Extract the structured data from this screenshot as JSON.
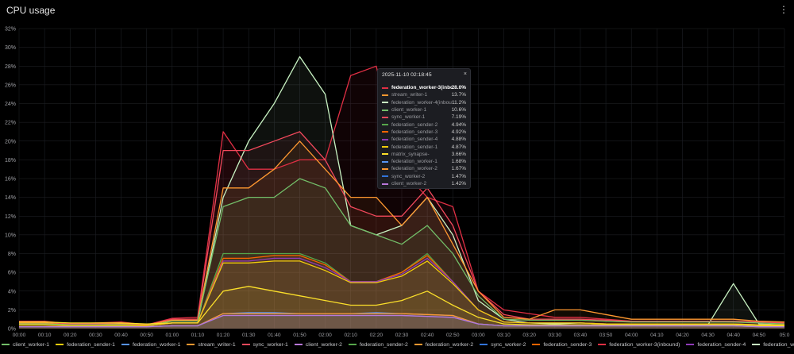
{
  "panel": {
    "title": "CPU usage",
    "menu_icon": "kebab-menu-icon"
  },
  "tooltip": {
    "time": "2025-11-10 02:18:45",
    "close_icon": "close-icon",
    "rows": [
      {
        "name": "federation_worker-3(inbound)",
        "value": "28.0%",
        "color": "#e02f44"
      },
      {
        "name": "stream_writer-1",
        "value": "13.7%",
        "color": "#ff9830"
      },
      {
        "name": "federation_worker-4(inbound)",
        "value": "11.2%",
        "color": "#c8f2c2"
      },
      {
        "name": "client_worker-1",
        "value": "10.6%",
        "color": "#73bf69"
      },
      {
        "name": "sync_worker-1",
        "value": "7.19%",
        "color": "#f2495c"
      },
      {
        "name": "federation_sender-2",
        "value": "4.94%",
        "color": "#56a64b"
      },
      {
        "name": "federation_sender-3",
        "value": "4.92%",
        "color": "#fa6400"
      },
      {
        "name": "federation_sender-4",
        "value": "4.88%",
        "color": "#8f3bb8"
      },
      {
        "name": "federation_sender-1",
        "value": "4.87%",
        "color": "#f2cc0c"
      },
      {
        "name": "matrix_synapse-",
        "value": "3.66%",
        "color": "#fade2a"
      },
      {
        "name": "federation_worker-1",
        "value": "1.68%",
        "color": "#5794f2"
      },
      {
        "name": "federation_worker-2",
        "value": "1.67%",
        "color": "#ff9830"
      },
      {
        "name": "sync_worker-2",
        "value": "1.47%",
        "color": "#3274d9"
      },
      {
        "name": "client_worker-2",
        "value": "1.42%",
        "color": "#b877d9"
      }
    ]
  },
  "legend": [
    {
      "name": "client_worker-1",
      "color": "#73bf69"
    },
    {
      "name": "federation_sender-1",
      "color": "#f2cc0c"
    },
    {
      "name": "federation_worker-1",
      "color": "#5794f2"
    },
    {
      "name": "stream_writer-1",
      "color": "#ff9830"
    },
    {
      "name": "sync_worker-1",
      "color": "#f2495c"
    },
    {
      "name": "client_worker-2",
      "color": "#b877d9"
    },
    {
      "name": "federation_sender-2",
      "color": "#56a64b"
    },
    {
      "name": "federation_worker-2",
      "color": "#ff9830"
    },
    {
      "name": "sync_worker-2",
      "color": "#3274d9"
    },
    {
      "name": "federation_sender-3",
      "color": "#fa6400"
    },
    {
      "name": "federation_worker-3(inbound)",
      "color": "#e02f44"
    },
    {
      "name": "federation_sender-4",
      "color": "#8f3bb8"
    },
    {
      "name": "federation_worker-4(inbound)",
      "color": "#c8f2c2"
    },
    {
      "name": "matrix_synapse-",
      "color": "#fade2a"
    }
  ],
  "chart_data": {
    "type": "area",
    "title": "CPU usage",
    "y_ticks": [
      "0%",
      "2%",
      "4%",
      "6%",
      "8%",
      "10%",
      "12%",
      "14%",
      "16%",
      "18%",
      "20%",
      "22%",
      "24%",
      "26%",
      "28%",
      "30%",
      "32%"
    ],
    "x_ticks": [
      "00:00",
      "00:10",
      "00:20",
      "00:30",
      "00:40",
      "00:50",
      "01:00",
      "01:10",
      "01:20",
      "01:30",
      "01:40",
      "01:50",
      "02:00",
      "02:10",
      "02:20",
      "02:30",
      "02:40",
      "02:50",
      "03:00",
      "03:10",
      "03:20",
      "03:30",
      "03:40",
      "03:50",
      "04:00",
      "04:10",
      "04:20",
      "04:30",
      "04:40",
      "04:50",
      "05:0"
    ],
    "ylim": [
      0,
      32
    ],
    "grid": true,
    "legend_position": "bottom",
    "series": [
      {
        "name": "federation_worker-3(inbound)",
        "color": "#e02f44",
        "values": [
          0.8,
          0.8,
          0.5,
          0.6,
          0.7,
          0.4,
          1.1,
          1.2,
          21,
          17,
          17,
          18,
          18,
          27,
          28,
          17,
          14,
          13,
          4,
          2,
          1.6,
          1.2,
          1.2,
          1,
          0.8,
          0.8,
          0.8,
          0.8,
          0.7,
          0.7,
          0.6
        ]
      },
      {
        "name": "federation_worker-4(inbound)",
        "color": "#c8f2c2",
        "values": [
          0.5,
          0.5,
          0.4,
          0.4,
          0.5,
          0.3,
          0.6,
          0.6,
          14,
          20,
          24,
          29,
          25,
          11,
          10,
          11,
          14,
          10,
          3,
          1,
          0.6,
          0.5,
          0.6,
          0.5,
          0.4,
          0.4,
          0.4,
          0.4,
          4.8,
          0.5,
          0.4
        ]
      },
      {
        "name": "sync_worker-1",
        "color": "#f2495c",
        "values": [
          0.7,
          0.7,
          0.5,
          0.5,
          0.6,
          0.4,
          1,
          1,
          19,
          19,
          20,
          21,
          18,
          13,
          12,
          12,
          15,
          11,
          4,
          1.5,
          1,
          1,
          1,
          0.9,
          0.8,
          0.8,
          0.8,
          0.8,
          0.8,
          0.7,
          0.6
        ]
      },
      {
        "name": "stream_writer-1",
        "color": "#ff9830",
        "values": [
          0.6,
          0.6,
          0.4,
          0.4,
          0.5,
          0.4,
          0.9,
          0.9,
          15,
          15,
          17,
          20,
          17,
          14,
          14,
          11,
          14,
          9,
          4,
          1.2,
          1,
          2,
          2,
          1.5,
          1,
          1,
          1,
          1,
          1,
          0.8,
          0.7
        ]
      },
      {
        "name": "client_worker-1",
        "color": "#73bf69",
        "values": [
          0.5,
          0.5,
          0.4,
          0.4,
          0.4,
          0.3,
          0.8,
          0.8,
          13,
          14,
          14,
          16,
          15,
          11,
          10,
          9,
          11,
          8,
          3.5,
          1,
          0.9,
          0.9,
          0.9,
          0.8,
          0.7,
          0.7,
          0.7,
          0.7,
          0.7,
          0.6,
          0.5
        ]
      },
      {
        "name": "federation_sender-2",
        "color": "#56a64b",
        "values": [
          0.4,
          0.4,
          0.3,
          0.3,
          0.3,
          0.3,
          0.6,
          0.6,
          8,
          8,
          8,
          8,
          7,
          5,
          5,
          6,
          8,
          5,
          2,
          0.7,
          0.6,
          0.6,
          0.6,
          0.5,
          0.5,
          0.5,
          0.5,
          0.5,
          0.5,
          0.4,
          0.4
        ]
      },
      {
        "name": "federation_sender-3",
        "color": "#fa6400",
        "values": [
          0.4,
          0.4,
          0.3,
          0.3,
          0.3,
          0.3,
          0.6,
          0.6,
          7.5,
          7.5,
          7.8,
          7.8,
          6.8,
          5,
          5,
          6,
          7.8,
          5,
          2,
          0.7,
          0.6,
          0.6,
          0.6,
          0.5,
          0.5,
          0.5,
          0.5,
          0.5,
          0.5,
          0.4,
          0.4
        ]
      },
      {
        "name": "federation_sender-4",
        "color": "#8f3bb8",
        "values": [
          0.4,
          0.4,
          0.3,
          0.3,
          0.3,
          0.3,
          0.6,
          0.6,
          7.2,
          7.2,
          7.5,
          7.5,
          6.5,
          5,
          5,
          5.8,
          7.5,
          5,
          2,
          0.7,
          0.6,
          0.6,
          0.6,
          0.5,
          0.5,
          0.5,
          0.5,
          0.5,
          0.5,
          0.4,
          0.4
        ]
      },
      {
        "name": "federation_sender-1",
        "color": "#f2cc0c",
        "values": [
          0.4,
          0.4,
          0.3,
          0.3,
          0.3,
          0.3,
          0.6,
          0.6,
          7,
          7,
          7.2,
          7.2,
          6.2,
          4.9,
          4.9,
          5.6,
          7.2,
          4.8,
          2,
          0.7,
          0.6,
          0.6,
          0.6,
          0.5,
          0.5,
          0.5,
          0.5,
          0.5,
          0.5,
          0.4,
          0.4
        ]
      },
      {
        "name": "matrix_synapse-",
        "color": "#fade2a",
        "values": [
          0.7,
          0.7,
          0.6,
          0.6,
          0.6,
          0.5,
          0.6,
          0.6,
          4,
          4.5,
          4,
          3.5,
          3,
          2.5,
          2.5,
          3,
          4,
          2.5,
          1.2,
          0.5,
          0.4,
          0.4,
          0.4,
          0.4,
          0.4,
          0.4,
          0.4,
          0.4,
          0.4,
          0.3,
          0.3
        ]
      },
      {
        "name": "federation_worker-1",
        "color": "#5794f2",
        "values": [
          0.2,
          0.2,
          0.2,
          0.2,
          0.2,
          0.2,
          0.3,
          0.3,
          1.6,
          1.7,
          1.7,
          1.6,
          1.6,
          1.6,
          1.7,
          1.6,
          1.5,
          1.4,
          0.5,
          0.3,
          0.3,
          0.3,
          0.3,
          0.3,
          0.3,
          0.3,
          0.3,
          0.3,
          0.3,
          0.2,
          0.2
        ]
      },
      {
        "name": "federation_worker-2",
        "color": "#ff9830",
        "values": [
          0.2,
          0.2,
          0.2,
          0.2,
          0.2,
          0.2,
          0.3,
          0.3,
          1.6,
          1.6,
          1.6,
          1.6,
          1.6,
          1.6,
          1.6,
          1.6,
          1.5,
          1.4,
          0.5,
          0.3,
          0.3,
          0.3,
          0.3,
          0.3,
          0.3,
          0.3,
          0.3,
          0.3,
          0.3,
          0.2,
          0.2
        ]
      },
      {
        "name": "sync_worker-2",
        "color": "#3274d9",
        "values": [
          0.2,
          0.2,
          0.2,
          0.2,
          0.2,
          0.2,
          0.3,
          0.3,
          1.4,
          1.4,
          1.4,
          1.4,
          1.4,
          1.4,
          1.4,
          1.4,
          1.3,
          1.2,
          0.5,
          0.3,
          0.3,
          0.3,
          0.3,
          0.3,
          0.3,
          0.3,
          0.3,
          0.3,
          0.3,
          0.2,
          0.2
        ]
      },
      {
        "name": "client_worker-2",
        "color": "#b877d9",
        "values": [
          0.2,
          0.2,
          0.2,
          0.2,
          0.2,
          0.2,
          0.3,
          0.3,
          1.4,
          1.4,
          1.4,
          1.4,
          1.4,
          1.4,
          1.4,
          1.4,
          1.3,
          1.2,
          0.5,
          0.3,
          0.3,
          0.3,
          0.3,
          0.3,
          0.3,
          0.3,
          0.3,
          0.3,
          0.3,
          0.2,
          0.2
        ]
      }
    ]
  }
}
